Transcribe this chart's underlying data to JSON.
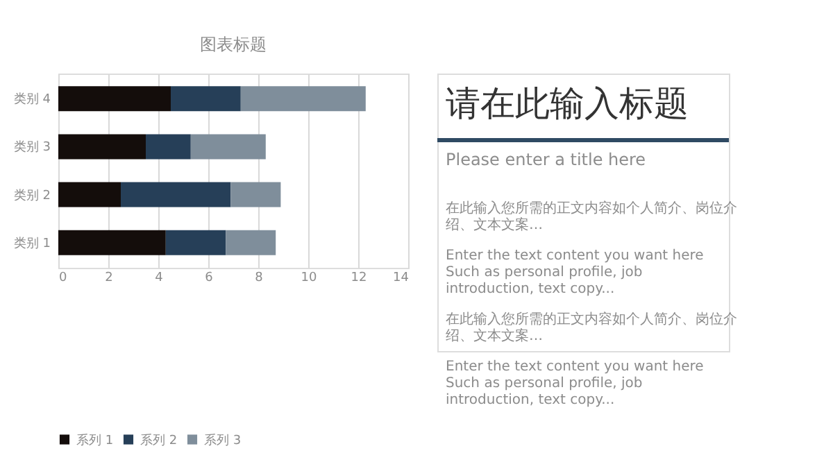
{
  "chart_data": [
    {
      "type": "bar",
      "title": "图表标题",
      "orientation": "horizontal",
      "stacked": true,
      "categories": [
        "类别 4",
        "类别 3",
        "类别 2",
        "类别 1"
      ],
      "series": [
        {
          "name": "系列 1",
          "color": "#140d0b",
          "values": [
            4.5,
            3.5,
            2.5,
            4.3
          ]
        },
        {
          "name": "系列 2",
          "color": "#263f58",
          "values": [
            2.8,
            1.8,
            4.4,
            2.4
          ]
        },
        {
          "name": "系列 3",
          "color": "#7f8e9b",
          "values": [
            5,
            3,
            2,
            2
          ]
        }
      ],
      "xlim": [
        0,
        14
      ],
      "xticks": [
        0,
        2,
        4,
        6,
        8,
        10,
        12,
        14
      ],
      "grid": "x",
      "legend": "bottom"
    },
    {
      "type": "other",
      "title": "请在此输入标题",
      "subtitle": "Please enter a title here",
      "annotations": [
        "在此输入您所需的正文内容如个人简介、岗位介绍、文本文案…",
        "Enter the text content you want here Such as personal profile, job introduction, text copy...",
        "在此输入您所需的正文内容如个人简介、岗位介绍、文本文案…",
        "Enter the text content you want here Such as personal profile, job introduction, text copy..."
      ]
    }
  ]
}
